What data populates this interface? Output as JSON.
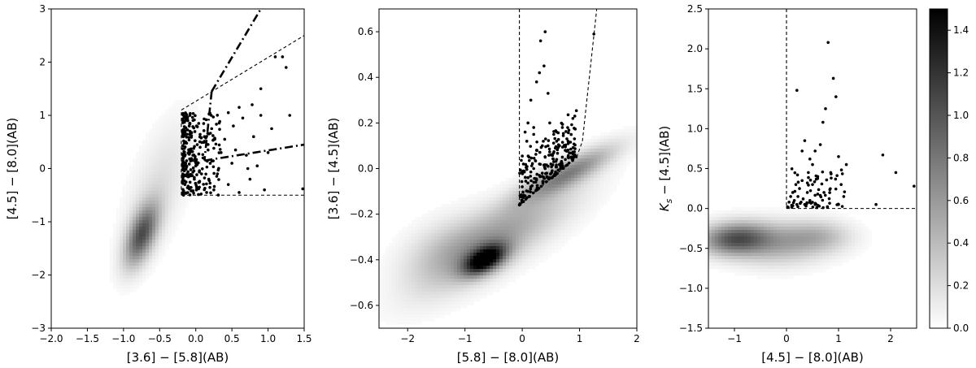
{
  "chart_data": [
    {
      "type": "scatter",
      "name": "panel-1",
      "xlabel": "[3.6] − [5.8](AB)",
      "ylabel": "[4.5] − [8.0](AB)",
      "xlim": [
        -2.0,
        1.5
      ],
      "ylim": [
        -3,
        3
      ],
      "xticks": [
        "−2.0",
        "−1.5",
        "−1.0",
        "−0.5",
        "0.0",
        "0.5",
        "1.0",
        "1.5"
      ],
      "xtick_values": [
        -2.0,
        -1.5,
        -1.0,
        -0.5,
        0.0,
        0.5,
        1.0,
        1.5
      ],
      "yticks": [
        "−3",
        "−2",
        "−1",
        "0",
        "1",
        "2",
        "3"
      ],
      "ytick_values": [
        -3,
        -2,
        -1,
        0,
        1,
        2,
        3
      ],
      "density": [
        {
          "x": -0.75,
          "y": -1.25,
          "sx": 0.16,
          "sy": 0.4,
          "rho": 0.55,
          "w": 0.65
        },
        {
          "x": -0.5,
          "y": -0.3,
          "sx": 0.32,
          "sy": 0.85,
          "rho": 0.6,
          "w": 0.12
        }
      ],
      "points_region": {
        "xmin": -0.2,
        "xmax": 1.5,
        "ymin": -0.5,
        "ymax": 1.1
      },
      "points_dense": [
        [
          -0.18,
          -0.45
        ],
        [
          -0.15,
          -0.3
        ],
        [
          -0.12,
          -0.1
        ],
        [
          -0.16,
          0.1
        ],
        [
          -0.1,
          0.3
        ],
        [
          -0.14,
          0.5
        ],
        [
          -0.08,
          0.7
        ],
        [
          -0.11,
          0.9
        ],
        [
          -0.17,
          1.0
        ],
        [
          -0.05,
          -0.42
        ],
        [
          -0.02,
          -0.2
        ],
        [
          0.0,
          0.05
        ],
        [
          -0.04,
          0.25
        ],
        [
          0.02,
          0.45
        ],
        [
          -0.06,
          0.62
        ],
        [
          0.01,
          0.8
        ],
        [
          0.05,
          -0.35
        ],
        [
          0.08,
          -0.1
        ],
        [
          0.1,
          0.2
        ],
        [
          0.06,
          0.4
        ],
        [
          0.12,
          0.6
        ],
        [
          0.15,
          -0.45
        ],
        [
          0.18,
          -0.2
        ],
        [
          0.2,
          0.1
        ],
        [
          0.17,
          0.35
        ],
        [
          0.22,
          0.75
        ],
        [
          0.25,
          -0.4
        ]
      ],
      "points": [
        [
          0.3,
          -0.1
        ],
        [
          0.35,
          0.3
        ],
        [
          0.4,
          0.55
        ],
        [
          0.45,
          -0.3
        ],
        [
          0.5,
          0.1
        ],
        [
          0.52,
          0.8
        ],
        [
          0.55,
          0.35
        ],
        [
          0.6,
          -0.45
        ],
        [
          0.65,
          0.95
        ],
        [
          0.7,
          0.25
        ],
        [
          0.75,
          -0.2
        ],
        [
          0.8,
          0.6
        ],
        [
          0.85,
          0.05
        ],
        [
          0.9,
          1.0
        ],
        [
          0.95,
          -0.4
        ],
        [
          1.0,
          0.3
        ],
        [
          1.05,
          0.75
        ],
        [
          0.45,
          1.05
        ],
        [
          0.6,
          1.15
        ],
        [
          0.78,
          1.2
        ],
        [
          0.9,
          1.5
        ],
        [
          1.1,
          2.1
        ],
        [
          1.2,
          2.1
        ],
        [
          1.25,
          1.9
        ],
        [
          1.3,
          1.0
        ],
        [
          0.72,
          0.0
        ],
        [
          1.48,
          -0.38
        ]
      ],
      "dashed_lines": [
        [
          [
            -0.2,
            -0.5
          ],
          [
            -0.2,
            1.1
          ]
        ],
        [
          [
            -0.2,
            1.1
          ],
          [
            1.5,
            2.5
          ]
        ],
        [
          [
            -0.2,
            -0.5
          ],
          [
            1.5,
            -0.5
          ]
        ]
      ],
      "dashdot_lines": [
        [
          [
            0.22,
            1.45
          ],
          [
            0.9,
            3.0
          ]
        ],
        [
          [
            0.22,
            1.45
          ],
          [
            0.12,
            0.15
          ]
        ],
        [
          [
            0.12,
            0.15
          ],
          [
            1.5,
            0.45
          ]
        ]
      ]
    },
    {
      "type": "scatter",
      "name": "panel-2",
      "xlabel": "[5.8] − [8.0](AB)",
      "ylabel": "[3.6] − [4.5](AB)",
      "xlim": [
        -2.5,
        2.0
      ],
      "ylim": [
        -0.7,
        0.7
      ],
      "xticks": [
        "−2",
        "−1",
        "0",
        "1",
        "2"
      ],
      "xtick_values": [
        -2,
        -1,
        0,
        1,
        2
      ],
      "yticks": [
        "−0.6",
        "−0.4",
        "−0.2",
        "0.0",
        "0.2",
        "0.4",
        "0.6"
      ],
      "ytick_values": [
        -0.6,
        -0.4,
        -0.2,
        0.0,
        0.2,
        0.4,
        0.6
      ],
      "density": [
        {
          "x": -0.65,
          "y": -0.4,
          "sx": 0.25,
          "sy": 0.045,
          "rho": 0.5,
          "w": 0.95
        },
        {
          "x": -0.4,
          "y": -0.3,
          "sx": 0.9,
          "sy": 0.16,
          "rho": 0.8,
          "w": 0.35
        },
        {
          "x": 0.8,
          "y": -0.02,
          "sx": 0.55,
          "sy": 0.08,
          "rho": 0.85,
          "w": 0.45
        },
        {
          "x": -1.3,
          "y": -0.35,
          "sx": 0.55,
          "sy": 0.1,
          "rho": 0.4,
          "w": 0.18
        }
      ],
      "points_dense": [
        [
          -0.05,
          -0.16
        ],
        [
          0.0,
          -0.14
        ],
        [
          0.05,
          -0.12
        ],
        [
          0.1,
          -0.1
        ],
        [
          0.15,
          -0.08
        ],
        [
          0.2,
          -0.06
        ],
        [
          0.25,
          -0.05
        ],
        [
          0.3,
          -0.03
        ],
        [
          0.35,
          -0.02
        ],
        [
          0.4,
          0.0
        ],
        [
          0.45,
          0.01
        ],
        [
          0.5,
          0.02
        ],
        [
          0.55,
          0.03
        ],
        [
          0.6,
          0.04
        ],
        [
          0.7,
          0.05
        ],
        [
          0.8,
          0.05
        ],
        [
          0.9,
          0.05
        ],
        [
          0.0,
          -0.08
        ],
        [
          0.1,
          -0.04
        ],
        [
          0.2,
          0.0
        ],
        [
          0.3,
          0.02
        ],
        [
          0.4,
          0.05
        ],
        [
          0.5,
          0.06
        ],
        [
          0.02,
          0.02
        ],
        [
          0.12,
          0.05
        ],
        [
          0.25,
          0.08
        ],
        [
          0.35,
          0.1
        ],
        [
          0.08,
          0.12
        ],
        [
          0.2,
          0.15
        ],
        [
          0.45,
          0.1
        ]
      ],
      "points": [
        [
          0.05,
          0.16
        ],
        [
          0.1,
          0.2
        ],
        [
          0.15,
          0.3
        ],
        [
          0.2,
          0.18
        ],
        [
          0.3,
          0.42
        ],
        [
          0.32,
          0.56
        ],
        [
          0.38,
          0.45
        ],
        [
          0.4,
          0.6
        ],
        [
          0.45,
          0.33
        ],
        [
          0.48,
          0.2
        ],
        [
          0.55,
          0.15
        ],
        [
          0.6,
          0.12
        ],
        [
          0.65,
          0.1
        ],
        [
          0.7,
          0.18
        ],
        [
          0.75,
          0.08
        ],
        [
          0.8,
          0.12
        ],
        [
          1.25,
          0.59
        ],
        [
          0.25,
          0.38
        ]
      ],
      "dashed_lines": [
        [
          [
            -0.05,
            0.7
          ],
          [
            -0.05,
            -0.16
          ]
        ],
        [
          [
            -0.05,
            -0.16
          ],
          [
            0.95,
            0.05
          ]
        ],
        [
          [
            0.95,
            0.05
          ],
          [
            1.05,
            0.12
          ]
        ],
        [
          [
            1.05,
            0.12
          ],
          [
            1.3,
            0.7
          ]
        ]
      ]
    },
    {
      "type": "scatter",
      "name": "panel-3",
      "xlabel": "[4.5] − [8.0](AB)",
      "ylabel_main": "K",
      "ylabel_sub": "s",
      "ylabel_rest": " − [4.5](AB)",
      "xlim": [
        -1.5,
        2.5
      ],
      "ylim": [
        -1.5,
        2.5
      ],
      "xticks": [
        "−1",
        "0",
        "1",
        "2"
      ],
      "xtick_values": [
        -1,
        0,
        1,
        2
      ],
      "yticks": [
        "−1.5",
        "−1.0",
        "−0.5",
        "0.0",
        "0.5",
        "1.0",
        "1.5",
        "2.0",
        "2.5"
      ],
      "ytick_values": [
        -1.5,
        -1.0,
        -0.5,
        0.0,
        0.5,
        1.0,
        1.5,
        2.0,
        2.5
      ],
      "density": [
        {
          "x": -1.0,
          "y": -0.38,
          "sx": 0.45,
          "sy": 0.14,
          "rho": 0.1,
          "w": 0.6
        },
        {
          "x": -0.2,
          "y": -0.45,
          "sx": 0.6,
          "sy": 0.18,
          "rho": 0.0,
          "w": 0.3
        },
        {
          "x": 0.6,
          "y": -0.35,
          "sx": 0.45,
          "sy": 0.14,
          "rho": 0.0,
          "w": 0.25
        }
      ],
      "points_dense": [
        [
          0.02,
          0.02
        ],
        [
          0.05,
          0.08
        ],
        [
          0.08,
          0.15
        ],
        [
          0.1,
          0.04
        ],
        [
          0.12,
          0.2
        ],
        [
          0.15,
          0.1
        ],
        [
          0.18,
          0.3
        ],
        [
          0.2,
          0.05
        ],
        [
          0.22,
          0.15
        ],
        [
          0.25,
          0.25
        ],
        [
          0.28,
          0.08
        ],
        [
          0.3,
          0.35
        ],
        [
          0.32,
          0.12
        ],
        [
          0.35,
          0.05
        ],
        [
          0.4,
          0.2
        ],
        [
          0.42,
          0.45
        ],
        [
          0.45,
          0.1
        ],
        [
          0.5,
          0.3
        ],
        [
          0.55,
          0.05
        ],
        [
          0.6,
          0.18
        ]
      ],
      "points": [
        [
          0.2,
          1.48
        ],
        [
          0.3,
          0.72
        ],
        [
          0.35,
          0.85
        ],
        [
          0.45,
          0.62
        ],
        [
          0.5,
          0.55
        ],
        [
          0.55,
          0.72
        ],
        [
          0.6,
          0.4
        ],
        [
          0.65,
          0.8
        ],
        [
          0.7,
          1.08
        ],
        [
          0.75,
          1.25
        ],
        [
          0.8,
          2.08
        ],
        [
          0.85,
          0.45
        ],
        [
          0.9,
          1.63
        ],
        [
          0.95,
          1.4
        ],
        [
          1.0,
          0.65
        ],
        [
          1.05,
          0.3
        ],
        [
          1.1,
          0.15
        ],
        [
          1.15,
          0.55
        ],
        [
          0.72,
          0.2
        ],
        [
          1.0,
          0.05
        ],
        [
          1.72,
          0.05
        ],
        [
          1.85,
          0.67
        ],
        [
          2.1,
          0.45
        ],
        [
          2.45,
          0.28
        ]
      ],
      "dashed_lines": [
        [
          [
            0.0,
            2.5
          ],
          [
            0.0,
            0.0
          ]
        ],
        [
          [
            0.0,
            0.0
          ],
          [
            2.5,
            0.0
          ]
        ]
      ]
    }
  ],
  "colorbar": {
    "min": 0.0,
    "max": 1.5,
    "ticks": [
      "0.0",
      "0.2",
      "0.4",
      "0.6",
      "0.8",
      "1.0",
      "1.2",
      "1.4"
    ],
    "tick_values": [
      0.0,
      0.2,
      0.4,
      0.6,
      0.8,
      1.0,
      1.2,
      1.4
    ],
    "colormap": [
      "#ffffff",
      "#000000"
    ]
  }
}
